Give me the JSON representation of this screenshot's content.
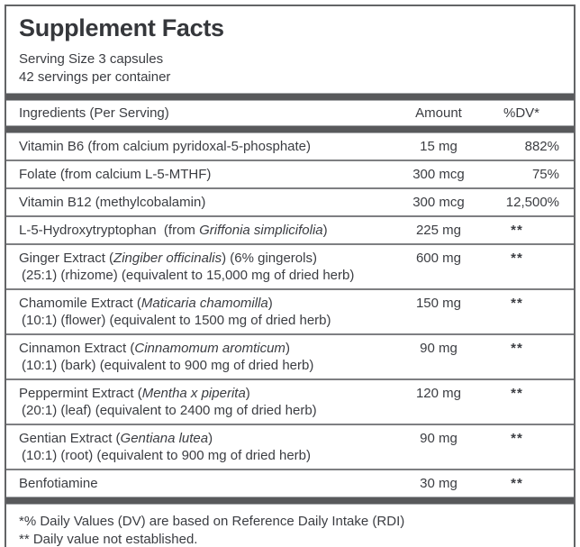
{
  "label": {
    "title": "Supplement Facts",
    "serving_size": "Serving Size 3 capsules",
    "servings_per_container": "42 servings per container",
    "columns": {
      "ingredients": "Ingredients (Per Serving)",
      "amount": "Amount",
      "dv": "%DV*"
    },
    "ingredients": [
      {
        "line1": [
          {
            "t": "Vitamin B6 (from calcium pyridoxal-5-phosphate)"
          }
        ],
        "amount": "15 mg",
        "dv": "882%"
      },
      {
        "line1": [
          {
            "t": "Folate (from calcium L-5-MTHF)"
          }
        ],
        "amount": "300 mcg",
        "dv": "75%"
      },
      {
        "line1": [
          {
            "t": "Vitamin B12 (methylcobalamin)"
          }
        ],
        "amount": "300 mcg",
        "dv": "12,500%"
      },
      {
        "line1": [
          {
            "t": "L-5-Hydroxytryptophan  (from "
          },
          {
            "t": "Griffonia simplicifolia",
            "i": true
          },
          {
            "t": ")"
          }
        ],
        "amount": "225 mg",
        "dv": "**"
      },
      {
        "line1": [
          {
            "t": "Ginger Extract ("
          },
          {
            "t": "Zingiber officinalis",
            "i": true
          },
          {
            "t": ") (6% gingerols)"
          }
        ],
        "line2": "(25:1) (rhizome) (equivalent to 15,000 mg of dried herb)",
        "amount": "600 mg",
        "dv": "**"
      },
      {
        "line1": [
          {
            "t": "Chamomile Extract ("
          },
          {
            "t": "Maticaria chamomilla",
            "i": true
          },
          {
            "t": ")"
          }
        ],
        "line2": "(10:1) (flower) (equivalent to 1500 mg of dried herb)",
        "amount": "150 mg",
        "dv": "**"
      },
      {
        "line1": [
          {
            "t": "Cinnamon Extract ("
          },
          {
            "t": "Cinnamomum aromticum",
            "i": true
          },
          {
            "t": ")"
          }
        ],
        "line2": "(10:1) (bark) (equivalent to 900 mg of dried herb)",
        "amount": "90 mg",
        "dv": "**"
      },
      {
        "line1": [
          {
            "t": "Peppermint Extract ("
          },
          {
            "t": "Mentha x piperita",
            "i": true
          },
          {
            "t": ")"
          }
        ],
        "line2": "(20:1) (leaf) (equivalent to 2400 mg of dried herb)",
        "amount": "120 mg",
        "dv": "**"
      },
      {
        "line1": [
          {
            "t": "Gentian Extract ("
          },
          {
            "t": "Gentiana lutea",
            "i": true
          },
          {
            "t": ")"
          }
        ],
        "line2": "(10:1) (root) (equivalent to 900 mg of dried herb)",
        "amount": "90 mg",
        "dv": "**"
      },
      {
        "line1": [
          {
            "t": "Benfotiamine"
          }
        ],
        "amount": "30 mg",
        "dv": "**"
      }
    ],
    "footnotes": [
      "*% Daily Values (DV) are based on Reference Daily Intake (RDI)",
      "** Daily value not established."
    ],
    "colors": {
      "bar": "#58595b",
      "text": "#3b3d42",
      "separator": "#7e7f82",
      "border": "#636466"
    }
  }
}
